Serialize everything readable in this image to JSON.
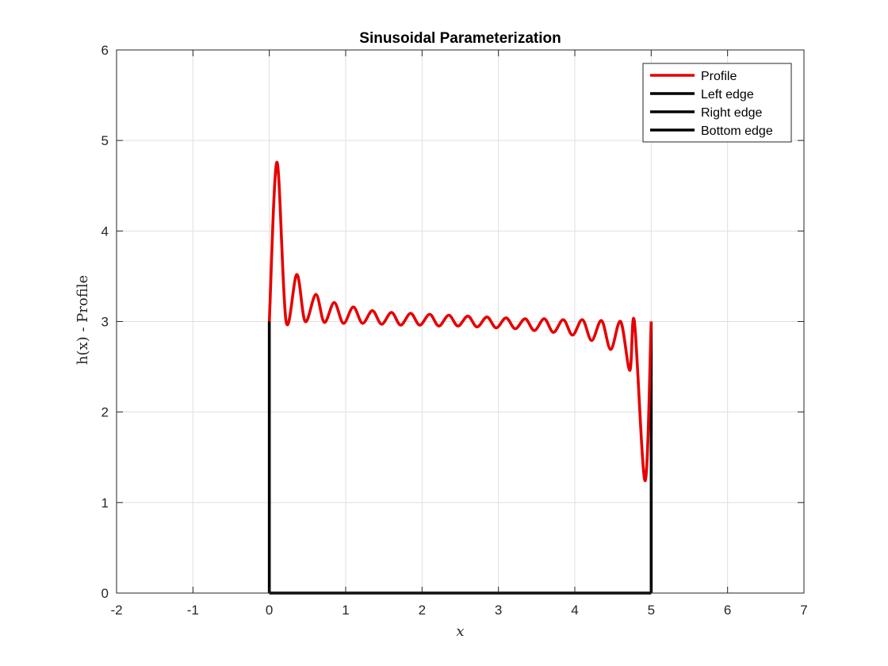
{
  "chart_data": {
    "type": "line",
    "title": "Sinusoidal Parameterization",
    "xlabel": "x",
    "ylabel": "h(x) - Profile",
    "xlim": [
      -2,
      7
    ],
    "ylim": [
      0,
      6
    ],
    "xticks": [
      "-2",
      "-1",
      "0",
      "1",
      "2",
      "3",
      "4",
      "5",
      "6",
      "7"
    ],
    "yticks": [
      "0",
      "1",
      "2",
      "3",
      "4",
      "5",
      "6"
    ],
    "grid": true,
    "legend_position": "top-right",
    "series": [
      {
        "name": "Profile",
        "color": "#e60000",
        "x": [
          0.0,
          0.1,
          0.22,
          0.36,
          0.47,
          0.61,
          0.72,
          0.85,
          0.97,
          1.1,
          1.22,
          1.35,
          1.47,
          1.6,
          1.72,
          1.85,
          1.97,
          2.1,
          2.22,
          2.35,
          2.47,
          2.6,
          2.72,
          2.85,
          2.97,
          3.1,
          3.22,
          3.35,
          3.47,
          3.6,
          3.72,
          3.85,
          3.97,
          4.1,
          4.22,
          4.35,
          4.47,
          4.6,
          4.72,
          4.78,
          4.92,
          5.0
        ],
        "y": [
          3.0,
          4.76,
          3.0,
          3.52,
          3.0,
          3.3,
          2.99,
          3.21,
          2.98,
          3.16,
          2.98,
          3.12,
          2.97,
          3.1,
          2.96,
          3.09,
          2.96,
          3.08,
          2.95,
          3.07,
          2.95,
          3.06,
          2.94,
          3.05,
          2.93,
          3.04,
          2.92,
          3.03,
          2.9,
          3.03,
          2.88,
          3.02,
          2.85,
          3.02,
          2.79,
          3.01,
          2.69,
          3.0,
          2.46,
          3.0,
          1.24,
          3.0
        ]
      },
      {
        "name": "Left edge",
        "color": "#000000",
        "x": [
          0,
          0
        ],
        "y": [
          0,
          3
        ]
      },
      {
        "name": "Right edge",
        "color": "#000000",
        "x": [
          5,
          5
        ],
        "y": [
          0,
          3
        ]
      },
      {
        "name": "Bottom edge",
        "color": "#000000",
        "x": [
          0,
          5
        ],
        "y": [
          0,
          0
        ]
      }
    ]
  }
}
